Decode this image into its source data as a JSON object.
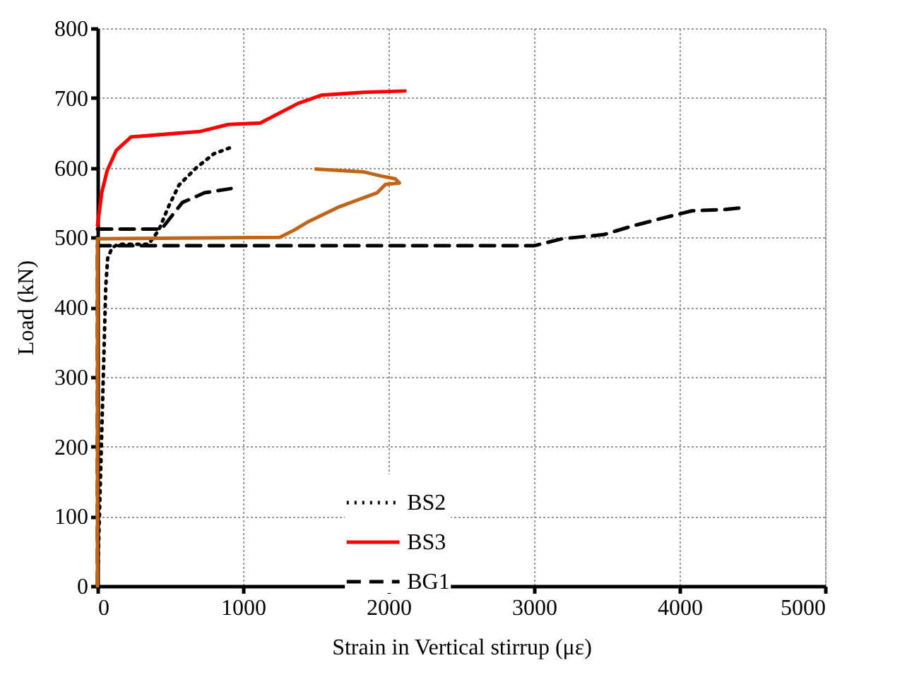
{
  "chart_data": {
    "type": "line",
    "xlabel": "Strain in Vertical stirrup (με)",
    "ylabel": "Load (kN)",
    "xlim": [
      0,
      5000
    ],
    "xticks": [
      0,
      1000,
      2000,
      3000,
      4000,
      5000
    ],
    "ylim": [
      0,
      800
    ],
    "yticks": [
      0,
      100,
      200,
      300,
      400,
      500,
      600,
      700,
      800
    ],
    "grid": true,
    "legend": "bottom",
    "series": [
      {
        "name": "BS2",
        "color": "#000000",
        "line_style": "dotted",
        "x": [
          0,
          20,
          40,
          57,
          70,
          100,
          140,
          350,
          420,
          490,
          560,
          680,
          800,
          930
        ],
        "values": [
          0,
          150,
          300,
          430,
          470,
          485,
          490,
          490,
          510,
          545,
          575,
          600,
          620,
          630
        ]
      },
      {
        "name": "BS3",
        "color": "#ff0000",
        "line_style": "solid",
        "x": [
          0,
          30,
          67,
          130,
          230,
          707,
          900,
          1119,
          1377,
          1539,
          1826,
          2113
        ],
        "values": [
          517,
          565,
          596,
          625,
          644,
          652,
          662,
          664,
          692,
          704,
          708,
          710
        ]
      },
      {
        "name": "BG1",
        "color": "#000000",
        "line_style": "dashed",
        "x": [
          0,
          0,
          3000,
          3193,
          3480,
          3671,
          3891,
          4082,
          4312,
          4407
        ],
        "values": [
          0,
          488,
          488,
          498,
          504,
          516,
          528,
          538,
          540,
          542
        ]
      },
      {
        "color": "#000000",
        "line_style": "dashed",
        "x": [
          0,
          440,
          583,
          736,
          918
        ],
        "values": [
          512,
          512,
          550,
          564,
          570
        ]
      },
      {
        "color": "#c0661a",
        "line_style": "solid",
        "x": [
          0,
          0,
          1252,
          1348,
          1444,
          1663,
          1922,
          1979,
          2075,
          2046,
          1950,
          1826,
          1501
        ],
        "values": [
          0,
          498,
          500,
          510,
          522,
          544,
          564,
          576,
          578,
          584,
          588,
          594,
          598
        ]
      }
    ]
  }
}
